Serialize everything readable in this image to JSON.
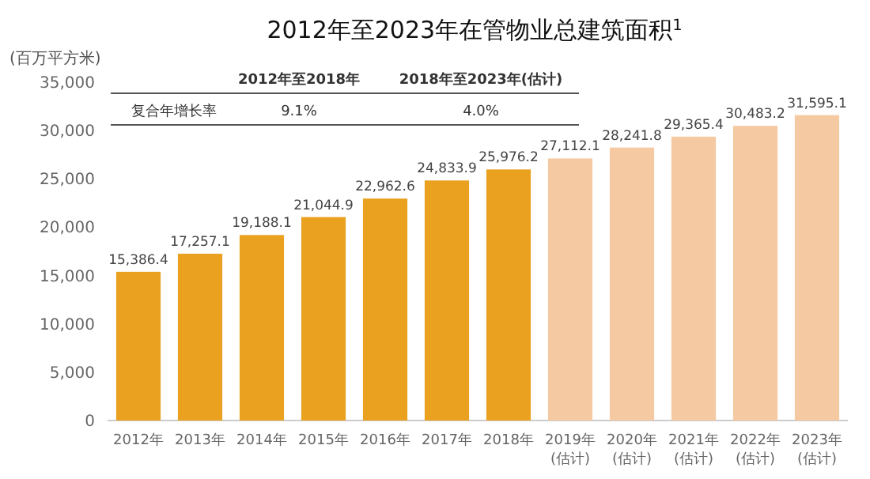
{
  "chart_data": {
    "type": "bar",
    "title": "2012年至2023年在管物业总建筑面积$^{1}$",
    "ylabel": "(百万平方米)",
    "categories": [
      "2012年",
      "2013年",
      "2014年",
      "2015年",
      "2016年",
      "2017年",
      "2018年",
      "2019年\n(估计)",
      "2020年\n(估计)",
      "2021年\n(估计)",
      "2022年\n(估计)",
      "2023年\n(估计)"
    ],
    "values": [
      15386.4,
      17257.1,
      19188.1,
      21044.9,
      22962.6,
      24833.9,
      25976.2,
      27112.1,
      28241.8,
      29365.4,
      30483.2,
      31595.1
    ],
    "colors": [
      "#e9a11f",
      "#e9a11f",
      "#e9a11f",
      "#e9a11f",
      "#e9a11f",
      "#e9a11f",
      "#e9a11f",
      "#f5c9a2",
      "#f5c9a2",
      "#f5c9a2",
      "#f5c9a2",
      "#f5c9a2"
    ],
    "ylim": [
      0,
      35000
    ],
    "yticks": [
      {
        "value": 0,
        "label": "0"
      },
      {
        "value": 5000,
        "label": "5,000"
      },
      {
        "value": 10000,
        "label": "10,000"
      },
      {
        "value": 15000,
        "label": "15,000"
      },
      {
        "value": 20000,
        "label": "20,000"
      },
      {
        "value": 25000,
        "label": "25,000"
      },
      {
        "value": 30000,
        "label": "30,000"
      },
      {
        "value": 35000,
        "label": "35,000"
      }
    ],
    "value_labels": [
      "15,386.4",
      "17,257.1",
      "19,188.1",
      "21,044.9",
      "22,962.6",
      "24,833.9",
      "25,976.2",
      "27,112.1",
      "28,241.8",
      "29,365.4",
      "30,483.2",
      "31,595.1"
    ],
    "grid": false,
    "annotations": [
      "2012年至2018年",
      "2018年至2023年(估计)",
      "复合年增长率",
      "9.1%",
      "4.0%"
    ]
  }
}
